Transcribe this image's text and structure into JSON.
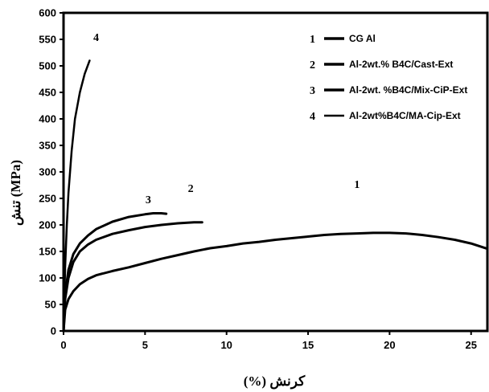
{
  "chart_data": {
    "type": "line",
    "xlabel": "کرنش (%)",
    "ylabel": "(MPa) تنش",
    "xlim": [
      0,
      26
    ],
    "ylim": [
      0,
      600
    ],
    "x_ticks": [
      0,
      5,
      10,
      15,
      20,
      25
    ],
    "y_ticks": [
      0,
      50,
      100,
      150,
      200,
      250,
      300,
      350,
      400,
      450,
      500,
      550,
      600
    ],
    "grid": false,
    "legend_position": "top-right",
    "series": [
      {
        "name": "CG Al",
        "marker": "1",
        "x": [
          0,
          0.1,
          0.3,
          0.6,
          1,
          1.5,
          2,
          3,
          4,
          5,
          6,
          7,
          8,
          9,
          10,
          11,
          12,
          13,
          14,
          15,
          16,
          17,
          18,
          19,
          20,
          21,
          22,
          23,
          24,
          25,
          26
        ],
        "y": [
          0,
          40,
          60,
          75,
          88,
          98,
          105,
          113,
          120,
          128,
          136,
          143,
          150,
          156,
          160,
          165,
          168,
          172,
          175,
          178,
          181,
          183,
          184,
          185,
          185,
          184,
          181,
          177,
          172,
          165,
          155
        ]
      },
      {
        "name": "Al-2wt.% B4C/Cast-Ext",
        "marker": "2",
        "x": [
          0,
          0.1,
          0.3,
          0.6,
          1,
          1.5,
          2,
          3,
          4,
          5,
          6,
          7,
          8,
          8.5
        ],
        "y": [
          0,
          60,
          100,
          130,
          150,
          163,
          172,
          183,
          190,
          196,
          200,
          203,
          205,
          205
        ]
      },
      {
        "name": "Al-2wt. %B4C/Mix-CiP-Ext",
        "marker": "3",
        "x": [
          0,
          0.1,
          0.3,
          0.6,
          1,
          1.5,
          2,
          3,
          4,
          5,
          5.5,
          6,
          6.3
        ],
        "y": [
          0,
          70,
          115,
          145,
          165,
          180,
          192,
          206,
          215,
          220,
          222,
          222,
          221
        ]
      },
      {
        "name": "Al-2wt%B4C/MA-Cip-Ext",
        "marker": "4",
        "x": [
          0,
          0.05,
          0.1,
          0.2,
          0.3,
          0.5,
          0.7,
          1,
          1.3,
          1.6
        ],
        "y": [
          0,
          60,
          120,
          200,
          260,
          340,
          400,
          450,
          485,
          510
        ]
      }
    ]
  }
}
